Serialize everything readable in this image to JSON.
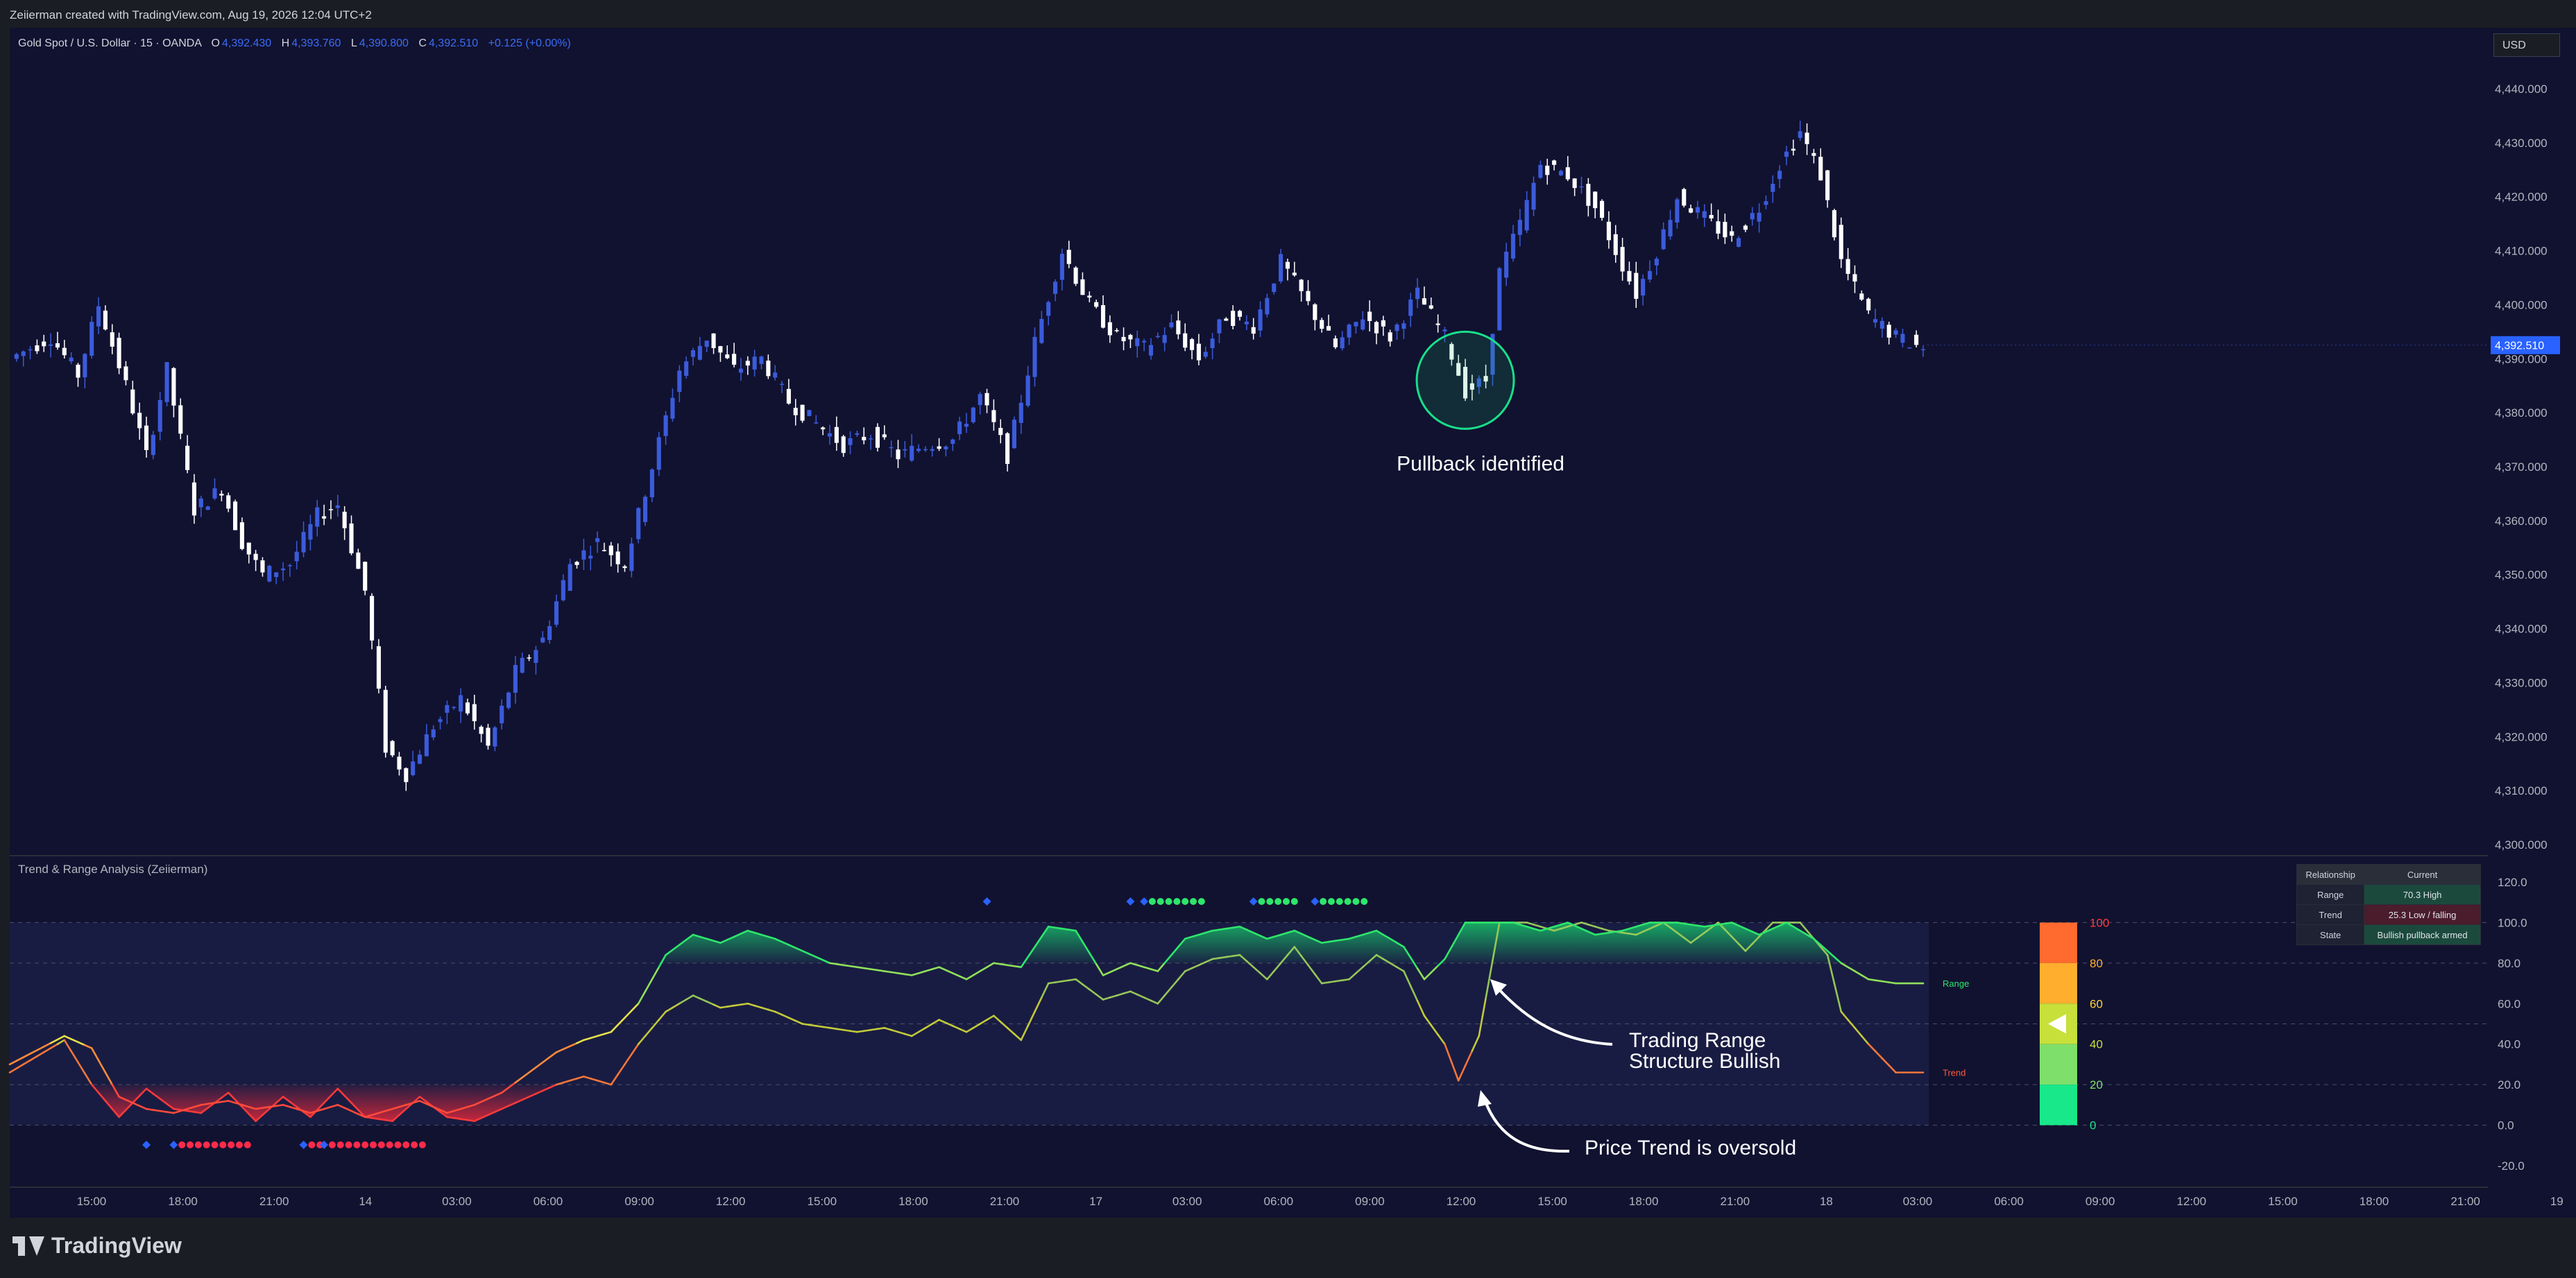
{
  "header": {
    "attribution": "Zeiierman created with TradingView.com, Aug 19, 2026 12:04 UTC+2"
  },
  "symbol": {
    "name": "Gold Spot / U.S. Dollar · 15 · OANDA",
    "ohlc": [
      {
        "k": "O",
        "v": "4,392.430"
      },
      {
        "k": "H",
        "v": "4,393.760"
      },
      {
        "k": "L",
        "v": "4,390.800"
      },
      {
        "k": "C",
        "v": "4,392.510"
      }
    ],
    "change": "+0.125 (+0.00%)",
    "currency": "USD",
    "last_price": "4,392.510"
  },
  "indicator": {
    "title": "Trend & Range Analysis (Zeiierman)",
    "range_label": "Range",
    "trend_label": "Trend"
  },
  "annotations": {
    "pullback": "Pullback identified",
    "trading_range_line1": "Trading Range",
    "trading_range_line2": "Structure Bullish",
    "price_trend": "Price Trend is oversold"
  },
  "table": {
    "header": [
      "Relationship",
      "Current"
    ],
    "rows": [
      {
        "label": "Range",
        "value": "70.3  High"
      },
      {
        "label": "Trend",
        "value": "25.3  Low / falling"
      },
      {
        "label": "State",
        "value": "Bullish pullback armed"
      }
    ]
  },
  "gauge": {
    "labels": [
      "100",
      "80",
      "60",
      "40",
      "20",
      "0"
    ]
  },
  "brand": {
    "name": "TradingView"
  },
  "colors": {
    "background": "#111230",
    "bull_candle": "#3b5bdb",
    "bear_candle": "#ffffff",
    "range_line": "#2ee66b",
    "trend_line": "#ff5a3a",
    "oversold_fill": "#ff2a3a",
    "overbought_fill": "#18c26a"
  },
  "chart_data": [
    {
      "type": "candlestick",
      "title": "Gold Spot / U.S. Dollar · 15 · OANDA",
      "ylim": [
        4300,
        4440
      ],
      "y_ticks": [
        "4,440.000",
        "4,430.000",
        "4,420.000",
        "4,410.000",
        "4,400.000",
        "4,390.000",
        "4,380.000",
        "4,370.000",
        "4,360.000",
        "4,350.000",
        "4,340.000",
        "4,330.000",
        "4,320.000",
        "4,310.000",
        "4,300.000"
      ],
      "x_ticks": [
        "15:00",
        "18:00",
        "21:00",
        "14",
        "03:00",
        "06:00",
        "09:00",
        "12:00",
        "15:00",
        "18:00",
        "21:00",
        "17",
        "03:00",
        "06:00",
        "09:00",
        "12:00",
        "15:00",
        "18:00",
        "21:00",
        "18",
        "03:00",
        "06:00",
        "09:00",
        "12:00",
        "15:00",
        "18:00",
        "21:00",
        "19"
      ],
      "close_path_keypoints": [
        [
          0,
          4390
        ],
        [
          6,
          4394
        ],
        [
          10,
          4387
        ],
        [
          13,
          4400
        ],
        [
          17,
          4385
        ],
        [
          20,
          4372
        ],
        [
          23,
          4388
        ],
        [
          27,
          4362
        ],
        [
          31,
          4366
        ],
        [
          34,
          4356
        ],
        [
          37,
          4350
        ],
        [
          41,
          4352
        ],
        [
          45,
          4361
        ],
        [
          48,
          4363
        ],
        [
          52,
          4347
        ],
        [
          55,
          4318
        ],
        [
          58,
          4313
        ],
        [
          62,
          4322
        ],
        [
          66,
          4327
        ],
        [
          70,
          4318
        ],
        [
          74,
          4332
        ],
        [
          78,
          4338
        ],
        [
          82,
          4352
        ],
        [
          86,
          4356
        ],
        [
          90,
          4352
        ],
        [
          94,
          4370
        ],
        [
          98,
          4388
        ],
        [
          102,
          4394
        ],
        [
          106,
          4388
        ],
        [
          110,
          4390
        ],
        [
          114,
          4382
        ],
        [
          118,
          4378
        ],
        [
          122,
          4374
        ],
        [
          126,
          4376
        ],
        [
          130,
          4372
        ],
        [
          134,
          4374
        ],
        [
          138,
          4375
        ],
        [
          142,
          4383
        ],
        [
          146,
          4372
        ],
        [
          150,
          4393
        ],
        [
          154,
          4410
        ],
        [
          158,
          4400
        ],
        [
          162,
          4394
        ],
        [
          166,
          4392
        ],
        [
          170,
          4396
        ],
        [
          174,
          4390
        ],
        [
          178,
          4398
        ],
        [
          182,
          4396
        ],
        [
          186,
          4408
        ],
        [
          190,
          4400
        ],
        [
          194,
          4392
        ],
        [
          198,
          4398
        ],
        [
          202,
          4394
        ],
        [
          206,
          4402
        ],
        [
          210,
          4394
        ],
        [
          213,
          4384
        ],
        [
          216,
          4386
        ],
        [
          218,
          4406
        ],
        [
          221,
          4415
        ],
        [
          224,
          4426
        ],
        [
          228,
          4424
        ],
        [
          232,
          4418
        ],
        [
          235,
          4410
        ],
        [
          238,
          4402
        ],
        [
          241,
          4410
        ],
        [
          244,
          4420
        ],
        [
          248,
          4416
        ],
        [
          252,
          4412
        ],
        [
          256,
          4418
        ],
        [
          259,
          4426
        ],
        [
          262,
          4432
        ],
        [
          265,
          4424
        ],
        [
          268,
          4408
        ],
        [
          272,
          4398
        ],
        [
          276,
          4394
        ],
        [
          280,
          4392
        ]
      ]
    },
    {
      "type": "line",
      "title": "Trend & Range Analysis (Zeiierman)",
      "ylim": [
        -20,
        120
      ],
      "y_ticks": [
        "120.0",
        "100.0",
        "80.0",
        "60.0",
        "40.0",
        "20.0",
        "0.0",
        "-20.0"
      ],
      "series": [
        {
          "name": "Range",
          "last_value": 70.3,
          "keypoints": [
            [
              0,
              30
            ],
            [
              8,
              44
            ],
            [
              12,
              38
            ],
            [
              16,
              14
            ],
            [
              20,
              8
            ],
            [
              24,
              6
            ],
            [
              28,
              10
            ],
            [
              32,
              12
            ],
            [
              36,
              8
            ],
            [
              40,
              10
            ],
            [
              44,
              6
            ],
            [
              48,
              10
            ],
            [
              52,
              4
            ],
            [
              56,
              8
            ],
            [
              60,
              12
            ],
            [
              64,
              6
            ],
            [
              68,
              10
            ],
            [
              72,
              16
            ],
            [
              76,
              26
            ],
            [
              80,
              36
            ],
            [
              84,
              42
            ],
            [
              88,
              46
            ],
            [
              92,
              60
            ],
            [
              96,
              84
            ],
            [
              100,
              94
            ],
            [
              104,
              90
            ],
            [
              108,
              96
            ],
            [
              112,
              92
            ],
            [
              116,
              86
            ],
            [
              120,
              80
            ],
            [
              124,
              78
            ],
            [
              128,
              76
            ],
            [
              132,
              74
            ],
            [
              136,
              78
            ],
            [
              140,
              72
            ],
            [
              144,
              80
            ],
            [
              148,
              78
            ],
            [
              152,
              98
            ],
            [
              156,
              96
            ],
            [
              160,
              74
            ],
            [
              164,
              80
            ],
            [
              168,
              76
            ],
            [
              172,
              92
            ],
            [
              176,
              96
            ],
            [
              180,
              98
            ],
            [
              184,
              92
            ],
            [
              188,
              96
            ],
            [
              192,
              90
            ],
            [
              196,
              92
            ],
            [
              200,
              96
            ],
            [
              204,
              88
            ],
            [
              207,
              72
            ],
            [
              210,
              82
            ],
            [
              213,
              100
            ],
            [
              216,
              100
            ],
            [
              220,
              100
            ],
            [
              224,
              96
            ],
            [
              228,
              100
            ],
            [
              232,
              94
            ],
            [
              236,
              96
            ],
            [
              240,
              100
            ],
            [
              244,
              100
            ],
            [
              248,
              98
            ],
            [
              252,
              100
            ],
            [
              256,
              94
            ],
            [
              260,
              100
            ],
            [
              264,
              92
            ],
            [
              268,
              80
            ],
            [
              272,
              72
            ],
            [
              276,
              70
            ]
          ]
        },
        {
          "name": "Trend",
          "last_value": 25.3,
          "keypoints": [
            [
              0,
              26
            ],
            [
              8,
              42
            ],
            [
              12,
              20
            ],
            [
              16,
              4
            ],
            [
              20,
              18
            ],
            [
              24,
              8
            ],
            [
              28,
              6
            ],
            [
              32,
              16
            ],
            [
              36,
              2
            ],
            [
              40,
              14
            ],
            [
              44,
              4
            ],
            [
              48,
              18
            ],
            [
              52,
              4
            ],
            [
              56,
              2
            ],
            [
              60,
              14
            ],
            [
              64,
              4
            ],
            [
              68,
              2
            ],
            [
              72,
              8
            ],
            [
              76,
              14
            ],
            [
              80,
              20
            ],
            [
              84,
              24
            ],
            [
              88,
              20
            ],
            [
              92,
              40
            ],
            [
              96,
              56
            ],
            [
              100,
              64
            ],
            [
              104,
              58
            ],
            [
              108,
              60
            ],
            [
              112,
              56
            ],
            [
              116,
              50
            ],
            [
              120,
              48
            ],
            [
              124,
              46
            ],
            [
              128,
              48
            ],
            [
              132,
              44
            ],
            [
              136,
              52
            ],
            [
              140,
              46
            ],
            [
              144,
              54
            ],
            [
              148,
              42
            ],
            [
              152,
              70
            ],
            [
              156,
              72
            ],
            [
              160,
              62
            ],
            [
              164,
              66
            ],
            [
              168,
              60
            ],
            [
              172,
              76
            ],
            [
              176,
              82
            ],
            [
              180,
              84
            ],
            [
              184,
              72
            ],
            [
              188,
              88
            ],
            [
              192,
              70
            ],
            [
              196,
              72
            ],
            [
              200,
              84
            ],
            [
              204,
              76
            ],
            [
              207,
              54
            ],
            [
              210,
              40
            ],
            [
              212,
              22
            ],
            [
              215,
              44
            ],
            [
              218,
              100
            ],
            [
              222,
              100
            ],
            [
              226,
              96
            ],
            [
              230,
              100
            ],
            [
              234,
              96
            ],
            [
              238,
              94
            ],
            [
              242,
              100
            ],
            [
              246,
              90
            ],
            [
              250,
              100
            ],
            [
              254,
              86
            ],
            [
              258,
              100
            ],
            [
              262,
              100
            ],
            [
              266,
              84
            ],
            [
              268,
              56
            ],
            [
              272,
              40
            ],
            [
              276,
              26
            ]
          ]
        }
      ]
    }
  ]
}
